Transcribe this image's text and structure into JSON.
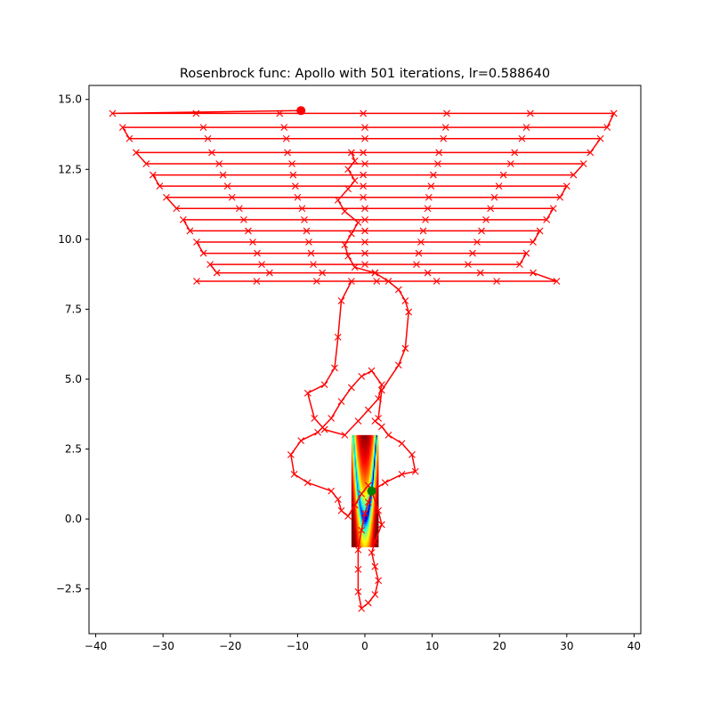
{
  "chart_data": {
    "type": "line",
    "title": "Rosenbrock func: Apollo with 501 iterations, lr=0.588640",
    "xlabel": "",
    "ylabel": "",
    "xlim": [
      -41,
      41
    ],
    "ylim": [
      -4.1,
      15.5
    ],
    "x_ticks": [
      "−40",
      "−30",
      "−20",
      "−10",
      "0",
      "10",
      "20",
      "30",
      "40"
    ],
    "x_tick_values": [
      -40,
      -30,
      -20,
      -10,
      0,
      10,
      20,
      30,
      40
    ],
    "y_ticks": [
      "−2.5",
      "0.0",
      "2.5",
      "5.0",
      "7.5",
      "10.0",
      "12.5",
      "15.0"
    ],
    "y_tick_values": [
      -2.5,
      0,
      2.5,
      5,
      7.5,
      10,
      12.5,
      15
    ],
    "grid": false,
    "background": {
      "type": "heatmap",
      "function": "rosenbrock",
      "x_range": [
        -2,
        2
      ],
      "y_range": [
        -1,
        3
      ],
      "colormap": "jet"
    },
    "series": [
      {
        "marker": "x",
        "color": "#ff0000",
        "sweep_rows": [
          {
            "y": 14.5,
            "left": -37.5,
            "right": 37.0
          },
          {
            "y": 14.0,
            "left": -36.0,
            "right": 36.0
          },
          {
            "y": 13.6,
            "left": -35.0,
            "right": 35.0
          },
          {
            "y": 13.1,
            "left": -34.0,
            "right": 33.5
          },
          {
            "y": 12.7,
            "left": -32.5,
            "right": 32.5
          },
          {
            "y": 12.3,
            "left": -31.5,
            "right": 31.0
          },
          {
            "y": 11.9,
            "left": -30.5,
            "right": 30.0
          },
          {
            "y": 11.5,
            "left": -29.5,
            "right": 29.0
          },
          {
            "y": 11.1,
            "left": -28.0,
            "right": 28.0
          },
          {
            "y": 10.7,
            "left": -27.0,
            "right": 27.0
          },
          {
            "y": 10.3,
            "left": -26.0,
            "right": 26.0
          },
          {
            "y": 9.9,
            "left": -25.0,
            "right": 25.0
          },
          {
            "y": 9.5,
            "left": -24.0,
            "right": 24.0
          },
          {
            "y": 9.1,
            "left": -23.0,
            "right": 23.0
          },
          {
            "y": 8.8,
            "left": -22.0,
            "right": 25.0
          },
          {
            "y": 8.5,
            "left": -25.0,
            "right": 28.5
          }
        ],
        "trail_points": [
          [
            -2.0,
            8.5
          ],
          [
            -3.5,
            7.8
          ],
          [
            -4.0,
            6.5
          ],
          [
            -4.5,
            5.4
          ],
          [
            -6.0,
            4.8
          ],
          [
            -8.5,
            4.5
          ],
          [
            -7.5,
            3.6
          ],
          [
            -6.0,
            3.2
          ],
          [
            -3.0,
            3.0
          ],
          [
            -1.0,
            3.5
          ],
          [
            0.5,
            3.9
          ],
          [
            2.0,
            4.3
          ],
          [
            2.5,
            4.8
          ],
          [
            1.0,
            5.3
          ],
          [
            -0.5,
            5.1
          ],
          [
            -2.0,
            4.7
          ],
          [
            -3.5,
            4.2
          ],
          [
            -5.0,
            3.6
          ],
          [
            -7.0,
            3.1
          ],
          [
            -9.5,
            2.8
          ],
          [
            -11.0,
            2.3
          ],
          [
            -10.5,
            1.6
          ],
          [
            -8.5,
            1.3
          ],
          [
            -5.0,
            1.0
          ],
          [
            -4.0,
            0.7
          ],
          [
            -3.5,
            0.3
          ],
          [
            -2.5,
            0.1
          ],
          [
            -1.5,
            0.5
          ],
          [
            -0.5,
            0.9
          ],
          [
            0.5,
            1.2
          ],
          [
            1.0,
            1.0
          ],
          [
            2.0,
            0.3
          ],
          [
            2.5,
            -0.2
          ],
          [
            1.5,
            -0.8
          ],
          [
            1.0,
            -1.2
          ],
          [
            1.5,
            -1.7
          ],
          [
            2.0,
            -2.2
          ],
          [
            1.5,
            -2.7
          ],
          [
            0.5,
            -3.0
          ],
          [
            -0.5,
            -3.2
          ],
          [
            -1.0,
            -2.6
          ],
          [
            -1.0,
            -1.8
          ],
          [
            -1.0,
            -1.1
          ],
          [
            -0.5,
            -0.4
          ],
          [
            0.0,
            0.2
          ],
          [
            0.5,
            0.6
          ],
          [
            1.0,
            1.0
          ],
          [
            3.0,
            1.3
          ],
          [
            5.5,
            1.6
          ],
          [
            7.5,
            1.7
          ],
          [
            7.0,
            2.3
          ],
          [
            5.5,
            2.7
          ],
          [
            3.5,
            3.0
          ],
          [
            2.5,
            3.3
          ],
          [
            1.5,
            3.5
          ],
          [
            2.0,
            3.6
          ],
          [
            2.5,
            4.6
          ],
          [
            5.0,
            5.5
          ],
          [
            6.0,
            6.1
          ],
          [
            6.5,
            7.4
          ],
          [
            6.0,
            7.8
          ],
          [
            5.0,
            8.2
          ],
          [
            3.5,
            8.5
          ],
          [
            1.5,
            8.8
          ],
          [
            -1.5,
            9.0
          ],
          [
            -2.5,
            9.4
          ],
          [
            -3.0,
            9.8
          ],
          [
            -2.0,
            10.2
          ],
          [
            -1.0,
            10.6
          ],
          [
            -3.0,
            11.0
          ],
          [
            -4.0,
            11.4
          ],
          [
            -2.5,
            11.8
          ],
          [
            -1.5,
            12.1
          ],
          [
            -2.5,
            12.5
          ],
          [
            -1.5,
            12.8
          ],
          [
            -2.0,
            13.1
          ]
        ],
        "start_marker": {
          "x": -9.5,
          "y": 14.6,
          "color": "#ff0000"
        },
        "optimum_marker": {
          "x": 1.0,
          "y": 1.0,
          "color": "#008000"
        }
      }
    ]
  }
}
